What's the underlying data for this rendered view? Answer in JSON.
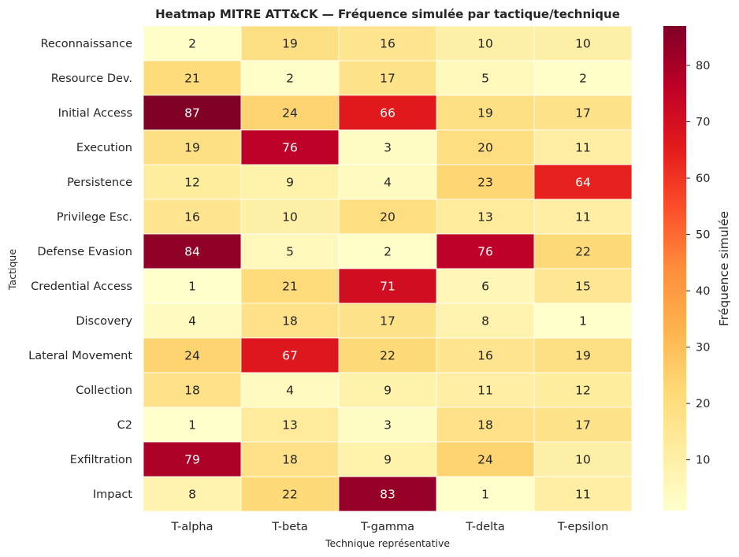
{
  "chart_data": {
    "type": "heatmap",
    "title": "Heatmap MITRE ATT&CK — Fréquence simulée par tactique/technique",
    "xlabel": "Technique représentative",
    "ylabel": "Tactique",
    "columns": [
      "T-alpha",
      "T-beta",
      "T-gamma",
      "T-delta",
      "T-epsilon"
    ],
    "rows": [
      "Reconnaissance",
      "Resource Dev.",
      "Initial Access",
      "Execution",
      "Persistence",
      "Privilege Esc.",
      "Defense Evasion",
      "Credential Access",
      "Discovery",
      "Lateral Movement",
      "Collection",
      "C2",
      "Exfiltration",
      "Impact"
    ],
    "values": [
      [
        2,
        19,
        16,
        10,
        10
      ],
      [
        21,
        2,
        17,
        5,
        2
      ],
      [
        87,
        24,
        66,
        19,
        17
      ],
      [
        19,
        76,
        3,
        20,
        11
      ],
      [
        12,
        9,
        4,
        23,
        64
      ],
      [
        16,
        10,
        20,
        13,
        11
      ],
      [
        84,
        5,
        2,
        76,
        22
      ],
      [
        1,
        21,
        71,
        6,
        15
      ],
      [
        4,
        18,
        17,
        8,
        1
      ],
      [
        24,
        67,
        22,
        16,
        19
      ],
      [
        18,
        4,
        9,
        11,
        12
      ],
      [
        1,
        13,
        3,
        18,
        17
      ],
      [
        79,
        18,
        9,
        24,
        10
      ],
      [
        8,
        22,
        83,
        1,
        11
      ]
    ],
    "colorbar": {
      "label": "Fréquence simulée",
      "vmin": 1,
      "vmax": 87,
      "ticks": [
        10,
        20,
        30,
        40,
        50,
        60,
        70,
        80
      ],
      "colormap": "YlOrRd"
    }
  }
}
